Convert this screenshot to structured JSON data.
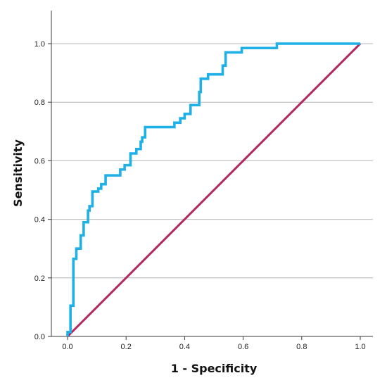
{
  "chart_data": {
    "type": "line",
    "title": "",
    "xlabel": "1 - Specificity",
    "ylabel": "Sensitivity",
    "xlim": [
      0.0,
      1.0
    ],
    "ylim": [
      0.0,
      1.0
    ],
    "x_ticks": [
      "0.0",
      "0.2",
      "0.4",
      "0.6",
      "0.8",
      "1.0"
    ],
    "y_ticks": [
      "0.0",
      "0.2",
      "0.4",
      "0.6",
      "0.8",
      "1.0"
    ],
    "grid": "horizontal",
    "legend": "none",
    "colors": {
      "roc": "#1eb0e6",
      "reference": "#b5255f"
    },
    "series": [
      {
        "style": "step",
        "color": "#1eb0e6",
        "points": [
          [
            0.0,
            0.0
          ],
          [
            0.0,
            0.015
          ],
          [
            0.01,
            0.015
          ],
          [
            0.01,
            0.105
          ],
          [
            0.02,
            0.105
          ],
          [
            0.02,
            0.265
          ],
          [
            0.03,
            0.265
          ],
          [
            0.03,
            0.3
          ],
          [
            0.045,
            0.3
          ],
          [
            0.045,
            0.345
          ],
          [
            0.055,
            0.345
          ],
          [
            0.055,
            0.39
          ],
          [
            0.07,
            0.39
          ],
          [
            0.07,
            0.43
          ],
          [
            0.075,
            0.43
          ],
          [
            0.075,
            0.445
          ],
          [
            0.085,
            0.445
          ],
          [
            0.085,
            0.495
          ],
          [
            0.105,
            0.495
          ],
          [
            0.105,
            0.505
          ],
          [
            0.115,
            0.505
          ],
          [
            0.115,
            0.52
          ],
          [
            0.13,
            0.52
          ],
          [
            0.13,
            0.55
          ],
          [
            0.18,
            0.55
          ],
          [
            0.18,
            0.57
          ],
          [
            0.195,
            0.57
          ],
          [
            0.195,
            0.585
          ],
          [
            0.215,
            0.585
          ],
          [
            0.215,
            0.625
          ],
          [
            0.235,
            0.625
          ],
          [
            0.235,
            0.64
          ],
          [
            0.25,
            0.64
          ],
          [
            0.25,
            0.665
          ],
          [
            0.255,
            0.665
          ],
          [
            0.255,
            0.68
          ],
          [
            0.265,
            0.68
          ],
          [
            0.265,
            0.715
          ],
          [
            0.365,
            0.715
          ],
          [
            0.365,
            0.73
          ],
          [
            0.385,
            0.73
          ],
          [
            0.385,
            0.745
          ],
          [
            0.4,
            0.745
          ],
          [
            0.4,
            0.76
          ],
          [
            0.42,
            0.76
          ],
          [
            0.42,
            0.79
          ],
          [
            0.45,
            0.79
          ],
          [
            0.45,
            0.835
          ],
          [
            0.455,
            0.835
          ],
          [
            0.455,
            0.88
          ],
          [
            0.48,
            0.88
          ],
          [
            0.48,
            0.895
          ],
          [
            0.53,
            0.895
          ],
          [
            0.53,
            0.925
          ],
          [
            0.54,
            0.925
          ],
          [
            0.54,
            0.97
          ],
          [
            0.595,
            0.97
          ],
          [
            0.595,
            0.985
          ],
          [
            0.715,
            0.985
          ],
          [
            0.715,
            1.0
          ],
          [
            1.0,
            1.0
          ]
        ]
      },
      {
        "style": "straight",
        "color": "#b5255f",
        "points": [
          [
            0.0,
            0.0
          ],
          [
            1.0,
            1.0
          ]
        ]
      }
    ]
  }
}
